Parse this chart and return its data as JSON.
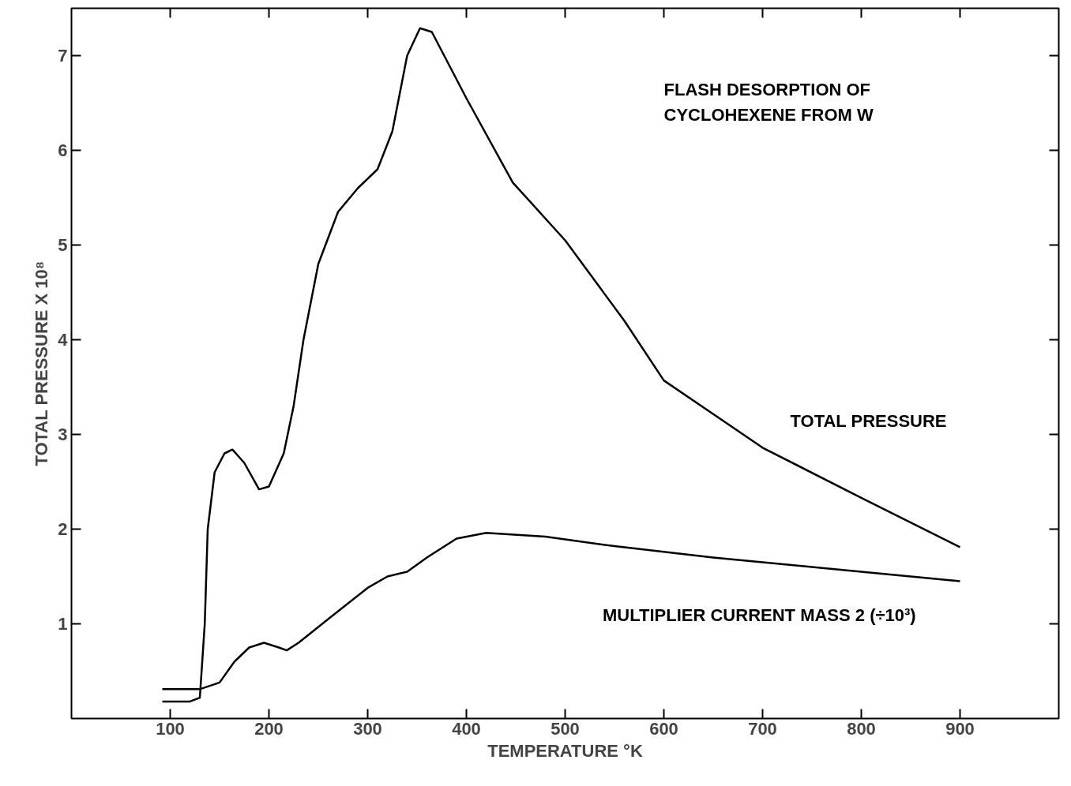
{
  "chart_data": {
    "type": "line",
    "xlabel": "TEMPERATURE °K",
    "ylabel": "TOTAL PRESSURE X 10⁸",
    "xlim": [
      0,
      1000
    ],
    "ylim": [
      0,
      7.5
    ],
    "xticks": [
      100,
      200,
      300,
      400,
      500,
      600,
      700,
      800,
      900
    ],
    "yticks": [
      1,
      2,
      3,
      4,
      5,
      6,
      7
    ],
    "grid": false,
    "legend": false,
    "marker": "none",
    "line_style": "solid",
    "annotations": [
      "FLASH DESORPTION OF",
      "CYCLOHEXENE FROM W"
    ],
    "series": [
      {
        "name": "TOTAL PRESSURE",
        "color": "#000000",
        "x": [
          92,
          120,
          130,
          135,
          138,
          145,
          155,
          163,
          175,
          190,
          200,
          215,
          225,
          235,
          250,
          270,
          290,
          310,
          325,
          340,
          353,
          365,
          400,
          447,
          500,
          560,
          600,
          700,
          800,
          900
        ],
        "values": [
          0.18,
          0.18,
          0.22,
          1.0,
          2.0,
          2.6,
          2.8,
          2.84,
          2.7,
          2.42,
          2.45,
          2.8,
          3.3,
          4.0,
          4.8,
          5.35,
          5.6,
          5.8,
          6.2,
          7.0,
          7.29,
          7.25,
          6.55,
          5.66,
          5.05,
          4.2,
          3.57,
          2.86,
          2.33,
          1.81
        ]
      },
      {
        "name": "MULTIPLIER CURRENT MASS 2 (÷10³)",
        "color": "#000000",
        "x": [
          92,
          130,
          150,
          165,
          180,
          195,
          210,
          218,
          230,
          260,
          300,
          320,
          340,
          360,
          390,
          420,
          480,
          550,
          650,
          750,
          900
        ],
        "values": [
          0.31,
          0.31,
          0.38,
          0.6,
          0.75,
          0.8,
          0.75,
          0.72,
          0.8,
          1.05,
          1.38,
          1.5,
          1.55,
          1.7,
          1.9,
          1.96,
          1.92,
          1.82,
          1.7,
          1.6,
          1.45
        ]
      }
    ]
  }
}
